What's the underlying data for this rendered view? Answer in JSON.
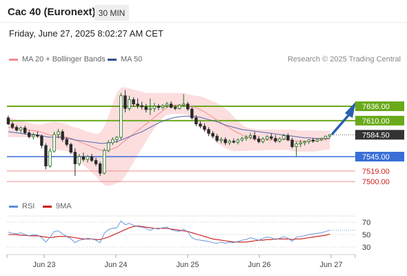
{
  "header": {
    "title": "Cac 40 (Euronext)",
    "interval": "30 MIN"
  },
  "timestamp": "Friday, June 27, 2025 8:02:27 AM CET",
  "legend": {
    "ma20": "MA 20 + Bollinger Bands",
    "ma50": "MA 50",
    "research": "Research © 2025 Trading Central"
  },
  "colors": {
    "up": "#1a6b1a",
    "down": "#2a2a2a",
    "green_level": "#6aaa1a",
    "blue_level": "#3a6fd8",
    "red_level": "#f08c8c",
    "bollinger": "#fcd8d8",
    "ma20": "#f08c8c",
    "ma50": "#5566aa",
    "rsi": "#5b8dd9",
    "rsi_ma": "#cc1111",
    "arrow": "#2a5fb0",
    "price_label": "#333333"
  },
  "chart_data": {
    "type": "candlestick",
    "x_ticks": [
      "Jun 23",
      "Jun 24",
      "Jun 25",
      "Jun 26",
      "Jun 27"
    ],
    "last_price": 7584.5,
    "levels": [
      {
        "value": 7636.0,
        "label": "7636.00",
        "kind": "resistance"
      },
      {
        "value": 7610.0,
        "label": "7610.00",
        "kind": "resistance"
      },
      {
        "value": 7545.0,
        "label": "7545.00",
        "kind": "pivot"
      },
      {
        "value": 7519.0,
        "label": "7519.00",
        "kind": "support"
      },
      {
        "value": 7500.0,
        "label": "7500.00",
        "kind": "support"
      }
    ],
    "candles": [
      [
        7615,
        7619,
        7602,
        7604
      ],
      [
        7604,
        7608,
        7595,
        7598
      ],
      [
        7598,
        7602,
        7590,
        7593
      ],
      [
        7593,
        7600,
        7588,
        7597
      ],
      [
        7597,
        7601,
        7585,
        7588
      ],
      [
        7588,
        7592,
        7578,
        7581
      ],
      [
        7581,
        7588,
        7576,
        7584
      ],
      [
        7584,
        7590,
        7579,
        7582
      ],
      [
        7582,
        7585,
        7560,
        7565
      ],
      [
        7565,
        7569,
        7522,
        7528
      ],
      [
        7528,
        7560,
        7525,
        7555
      ],
      [
        7555,
        7590,
        7552,
        7585
      ],
      [
        7585,
        7595,
        7578,
        7590
      ],
      [
        7590,
        7594,
        7572,
        7576
      ],
      [
        7576,
        7580,
        7563,
        7567
      ],
      [
        7567,
        7570,
        7550,
        7553
      ],
      [
        7553,
        7560,
        7510,
        7532
      ],
      [
        7532,
        7550,
        7528,
        7545
      ],
      [
        7545,
        7552,
        7536,
        7540
      ],
      [
        7540,
        7548,
        7534,
        7545
      ],
      [
        7545,
        7550,
        7535,
        7538
      ],
      [
        7538,
        7543,
        7528,
        7532
      ],
      [
        7532,
        7536,
        7510,
        7515
      ],
      [
        7515,
        7560,
        7513,
        7556
      ],
      [
        7556,
        7575,
        7553,
        7570
      ],
      [
        7570,
        7580,
        7566,
        7576
      ],
      [
        7576,
        7582,
        7570,
        7580
      ],
      [
        7580,
        7660,
        7576,
        7655
      ],
      [
        7655,
        7665,
        7625,
        7632
      ],
      [
        7632,
        7655,
        7628,
        7648
      ],
      [
        7648,
        7652,
        7635,
        7640
      ],
      [
        7640,
        7650,
        7632,
        7637
      ],
      [
        7637,
        7644,
        7630,
        7635
      ],
      [
        7635,
        7640,
        7625,
        7630
      ],
      [
        7630,
        7650,
        7620,
        7632
      ],
      [
        7632,
        7642,
        7626,
        7636
      ],
      [
        7636,
        7640,
        7629,
        7634
      ],
      [
        7634,
        7640,
        7630,
        7637
      ],
      [
        7637,
        7644,
        7633,
        7640
      ],
      [
        7640,
        7645,
        7632,
        7634
      ],
      [
        7634,
        7638,
        7629,
        7632
      ],
      [
        7632,
        7640,
        7630,
        7638
      ],
      [
        7638,
        7658,
        7636,
        7640
      ],
      [
        7640,
        7644,
        7628,
        7631
      ],
      [
        7631,
        7635,
        7612,
        7615
      ],
      [
        7615,
        7620,
        7600,
        7604
      ],
      [
        7604,
        7609,
        7596,
        7600
      ],
      [
        7600,
        7605,
        7590,
        7594
      ],
      [
        7594,
        7598,
        7582,
        7587
      ],
      [
        7587,
        7591,
        7578,
        7582
      ],
      [
        7582,
        7586,
        7571,
        7574
      ],
      [
        7574,
        7580,
        7569,
        7576
      ],
      [
        7576,
        7580,
        7566,
        7570
      ],
      [
        7570,
        7576,
        7566,
        7573
      ],
      [
        7573,
        7578,
        7569,
        7571
      ],
      [
        7571,
        7578,
        7567,
        7575
      ],
      [
        7575,
        7581,
        7572,
        7578
      ],
      [
        7578,
        7584,
        7574,
        7580
      ],
      [
        7580,
        7588,
        7576,
        7583
      ],
      [
        7583,
        7590,
        7574,
        7577
      ],
      [
        7577,
        7582,
        7569,
        7572
      ],
      [
        7572,
        7580,
        7569,
        7577
      ],
      [
        7577,
        7584,
        7574,
        7581
      ],
      [
        7581,
        7587,
        7575,
        7578
      ],
      [
        7578,
        7584,
        7570,
        7573
      ],
      [
        7573,
        7580,
        7570,
        7577
      ],
      [
        7577,
        7586,
        7575,
        7583
      ],
      [
        7583,
        7587,
        7573,
        7575
      ],
      [
        7575,
        7579,
        7560,
        7563
      ],
      [
        7563,
        7572,
        7545,
        7568
      ],
      [
        7568,
        7575,
        7562,
        7570
      ],
      [
        7570,
        7574,
        7565,
        7572
      ],
      [
        7572,
        7577,
        7568,
        7575
      ],
      [
        7575,
        7579,
        7570,
        7573
      ],
      [
        7573,
        7578,
        7571,
        7576
      ],
      [
        7576,
        7579,
        7573,
        7578
      ],
      [
        7578,
        7583,
        7575,
        7582
      ],
      [
        7582,
        7586,
        7578,
        7584.5
      ]
    ],
    "rsi": {
      "values": [
        54,
        52,
        51,
        53,
        50,
        48,
        50,
        49,
        45,
        38,
        46,
        55,
        56,
        51,
        47,
        43,
        37,
        41,
        42,
        44,
        43,
        41,
        37,
        52,
        58,
        60,
        61,
        72,
        66,
        68,
        65,
        63,
        62,
        60,
        57,
        60,
        59,
        61,
        62,
        58,
        56,
        55,
        59,
        54,
        45,
        42,
        41,
        40,
        39,
        37,
        36,
        38,
        36,
        38,
        37,
        39,
        41,
        42,
        45,
        43,
        41,
        44,
        46,
        45,
        42,
        44,
        47,
        44,
        39,
        46,
        47,
        48,
        50,
        51,
        52,
        53,
        55,
        57
      ],
      "ma": [
        50,
        50,
        50,
        49,
        49,
        48,
        48,
        48,
        47,
        46,
        45,
        46,
        47,
        47,
        47,
        46,
        45,
        44,
        43,
        43,
        43,
        42,
        42,
        44,
        46,
        49,
        52,
        55,
        58,
        61,
        63,
        64,
        63,
        62,
        61,
        60,
        60,
        60,
        60,
        59,
        58,
        57,
        56,
        55,
        53,
        51,
        49,
        47,
        45,
        43,
        42,
        41,
        40,
        39,
        38,
        38,
        38,
        38,
        39,
        40,
        41,
        41,
        42,
        42,
        43,
        43,
        43,
        43,
        42,
        43,
        43,
        44,
        45,
        46,
        47,
        48,
        49,
        51
      ],
      "levels": [
        70,
        50,
        30
      ]
    },
    "ma20": [
      7598,
      7597,
      7596,
      7595,
      7594,
      7593,
      7592,
      7591,
      7589,
      7586,
      7584,
      7583,
      7582,
      7581,
      7580,
      7578,
      7575,
      7572,
      7569,
      7566,
      7563,
      7560,
      7557,
      7556,
      7557,
      7559,
      7562,
      7568,
      7574,
      7580,
      7586,
      7592,
      7598,
      7604,
      7610,
      7616,
      7622,
      7628,
      7634,
      7637,
      7638,
      7638,
      7638,
      7637,
      7636,
      7633,
      7630,
      7626,
      7621,
      7616,
      7611,
      7606,
      7601,
      7597,
      7592,
      7588,
      7584,
      7581,
      7579,
      7577,
      7576,
      7575,
      7575,
      7575,
      7576,
      7576,
      7576,
      7576,
      7574,
      7573,
      7573,
      7573,
      7573,
      7573,
      7574,
      7575,
      7576,
      7577
    ],
    "ma50": [
      7590,
      7589,
      7588,
      7587,
      7586,
      7585,
      7585,
      7584,
      7583,
      7581,
      7580,
      7580,
      7580,
      7579,
      7578,
      7577,
      7575,
      7574,
      7573,
      7572,
      7571,
      7570,
      7569,
      7569,
      7570,
      7571,
      7572,
      7575,
      7578,
      7581,
      7584,
      7587,
      7590,
      7594,
      7598,
      7602,
      7606,
      7609,
      7612,
      7614,
      7616,
      7617,
      7618,
      7618,
      7618,
      7617,
      7616,
      7614,
      7612,
      7610,
      7608,
      7605,
      7602,
      7600,
      7598,
      7596,
      7594,
      7593,
      7592,
      7591,
      7590,
      7589,
      7588,
      7587,
      7586,
      7585,
      7584,
      7583,
      7582,
      7581,
      7580,
      7579,
      7579,
      7578,
      7578,
      7578,
      7578,
      7578
    ],
    "bb_upper": [
      7615,
      7614,
      7612,
      7610,
      7608,
      7606,
      7604,
      7603,
      7603,
      7606,
      7607,
      7608,
      7607,
      7606,
      7604,
      7600,
      7598,
      7596,
      7593,
      7590,
      7588,
      7586,
      7588,
      7600,
      7618,
      7640,
      7660,
      7670,
      7670,
      7668,
      7666,
      7664,
      7662,
      7660,
      7660,
      7660,
      7660,
      7660,
      7660,
      7660,
      7660,
      7660,
      7660,
      7658,
      7656,
      7655,
      7654,
      7652,
      7648,
      7645,
      7642,
      7637,
      7632,
      7625,
      7617,
      7610,
      7603,
      7598,
      7596,
      7595,
      7594,
      7594,
      7594,
      7594,
      7594,
      7594,
      7594,
      7594,
      7594,
      7593,
      7592,
      7592,
      7592,
      7592,
      7592,
      7592,
      7592,
      7592
    ],
    "bb_lower": [
      7580,
      7580,
      7580,
      7580,
      7580,
      7580,
      7580,
      7580,
      7575,
      7565,
      7560,
      7558,
      7557,
      7556,
      7555,
      7552,
      7545,
      7537,
      7530,
      7523,
      7516,
      7510,
      7500,
      7494,
      7492,
      7494,
      7497,
      7500,
      7510,
      7522,
      7535,
      7548,
      7560,
      7572,
      7585,
      7596,
      7605,
      7615,
      7620,
      7622,
      7622,
      7622,
      7622,
      7620,
      7615,
      7608,
      7600,
      7592,
      7585,
      7578,
      7570,
      7565,
      7560,
      7557,
      7555,
      7555,
      7555,
      7555,
      7556,
      7556,
      7556,
      7556,
      7557,
      7557,
      7557,
      7557,
      7557,
      7557,
      7555,
      7554,
      7554,
      7554,
      7554,
      7554,
      7555,
      7556,
      7557,
      7558
    ]
  }
}
